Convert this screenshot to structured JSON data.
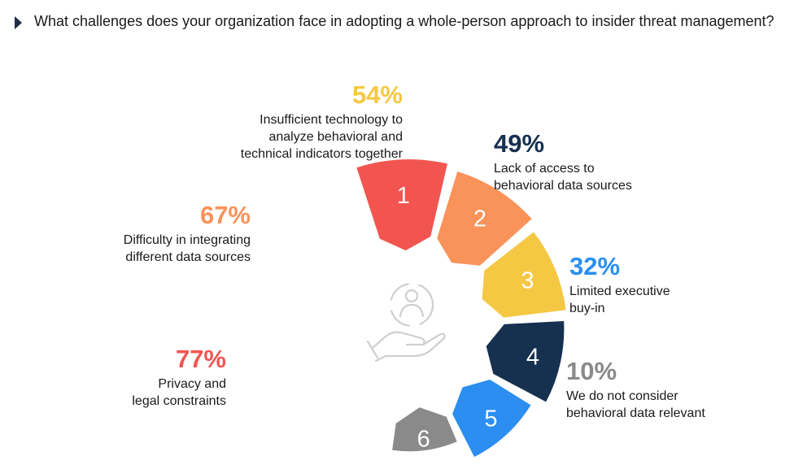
{
  "title": "What challenges does your organization face in adopting a whole-person approach to insider threat management?",
  "center_icon": "hand-holding-person-icon",
  "chart_data": {
    "type": "pie",
    "title": "What challenges does your organization face in adopting a whole-person approach to insider threat management?",
    "unit": "%",
    "categories": [
      "Privacy and legal constraints",
      "Difficulty in integrating different data sources",
      "Insufficient technology to analyze behavioral and technical indicators together",
      "Lack of access to behavioral data sources",
      "Limited executive buy-in",
      "We do not consider behavioral data relevant"
    ],
    "values": [
      77,
      67,
      54,
      49,
      32,
      10
    ],
    "items": [
      {
        "number": "1",
        "value": 77,
        "pct": "77%",
        "lines": [
          "Privacy and",
          "legal constraints"
        ],
        "color": "#f25550",
        "number_color": "#ffffff"
      },
      {
        "number": "2",
        "value": 67,
        "pct": "67%",
        "lines": [
          "Difficulty in integrating",
          "different data sources"
        ],
        "color": "#f9935a",
        "number_color": "#ffffff"
      },
      {
        "number": "3",
        "value": 54,
        "pct": "54%",
        "lines": [
          "Insufficient technology to",
          "analyze behavioral and",
          "technical indicators together"
        ],
        "color": "#f5c844",
        "number_color": "#ffffff"
      },
      {
        "number": "4",
        "value": 49,
        "pct": "49%",
        "lines": [
          "Lack of access to",
          "behavioral data sources"
        ],
        "color": "#16304f",
        "number_color": "#ffffff"
      },
      {
        "number": "5",
        "value": 32,
        "pct": "32%",
        "lines": [
          "Limited executive",
          "buy-in"
        ],
        "color": "#2b8ef0",
        "number_color": "#ffffff"
      },
      {
        "number": "6",
        "value": 10,
        "pct": "10%",
        "lines": [
          "We do not consider",
          "behavioral data relevant"
        ],
        "color": "#8a8a8a",
        "number_color": "#ffffff"
      }
    ]
  }
}
